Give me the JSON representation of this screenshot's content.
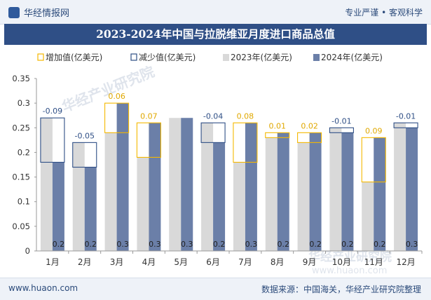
{
  "header": {
    "brand": "华经情报网",
    "tagline": "专业严谨 • 客观科学"
  },
  "footer": {
    "site": "www.huaon.com",
    "source": "数据来源：中国海关，华经产业研究院整理"
  },
  "colors": {
    "increase": "#f5b800",
    "decrease": "#2f4f86",
    "bar2023": "#d9d9d9",
    "bar2024": "#6b7fa8",
    "title_bg": "#2f4f86"
  },
  "chart_data": {
    "type": "bar",
    "title": "2023-2024年中国与拉脱维亚月度进口商品总值",
    "categories": [
      "1月",
      "2月",
      "3月",
      "4月",
      "5月",
      "6月",
      "7月",
      "8月",
      "9月",
      "10月",
      "11月",
      "12月"
    ],
    "ylim": [
      0,
      0.35
    ],
    "yticks": [
      0,
      0.05,
      0.1,
      0.15,
      0.2,
      0.25,
      0.3,
      0.35
    ],
    "ytick_labels": [
      "0",
      "0.05",
      "0.1",
      "0.15",
      "0.2",
      "0.25",
      "0.3",
      "0.35"
    ],
    "legend": [
      "增加值(亿美元)",
      "减少值(亿美元)",
      "2023年(亿美元)",
      "2024年(亿美元)"
    ],
    "series": [
      {
        "name": "2023年(亿美元)",
        "values": [
          0.27,
          0.22,
          0.24,
          0.19,
          0.27,
          0.26,
          0.18,
          0.23,
          0.22,
          0.25,
          0.14,
          0.26
        ]
      },
      {
        "name": "2024年(亿美元)",
        "values": [
          0.18,
          0.17,
          0.3,
          0.26,
          0.27,
          0.22,
          0.26,
          0.24,
          0.24,
          0.24,
          0.23,
          0.25
        ]
      }
    ],
    "change_labels": [
      "-0.09",
      "-0.05",
      "0.06",
      "0.07",
      "",
      "-0.04",
      "0.08",
      "0.01",
      "0.02",
      "-0.01",
      "0.09",
      "-0.01"
    ],
    "bar_value_labels": [
      "0.2",
      "0.2",
      "0.3",
      "0.3",
      "0.3",
      "0.2",
      "0.3",
      "0.2",
      "0.2",
      "0.2",
      "0.2",
      "0.3"
    ],
    "watermark": "华经产业研究院",
    "watermark_url": "www.huaon.com"
  }
}
